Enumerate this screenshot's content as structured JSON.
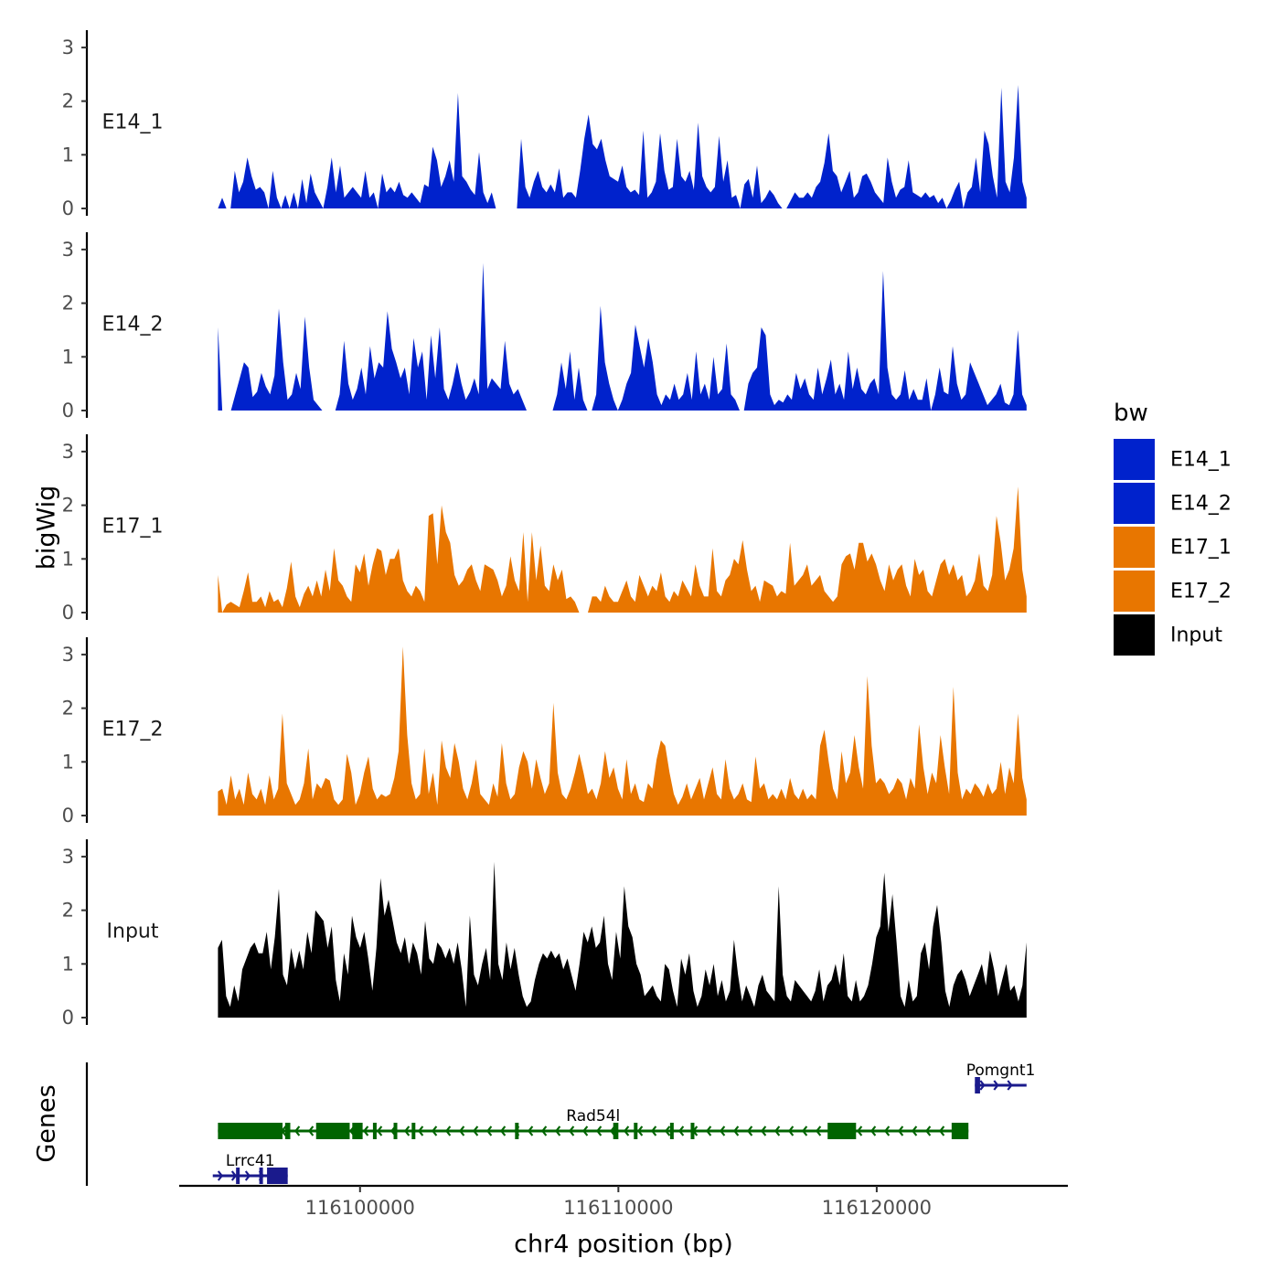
{
  "chart_data": {
    "type": "area",
    "ylabel": "bigWig",
    "genes_label": "Genes",
    "xlabel": "chr4 position (bp)",
    "x_range": [
      116094500,
      116125800
    ],
    "xlim": [
      116093000,
      116127400
    ],
    "x_ticks": [
      116100000,
      116110000,
      116120000
    ],
    "x_tick_labels": [
      "116100000",
      "116110000",
      "116120000"
    ],
    "ylim": [
      0,
      3.3
    ],
    "y_ticks": [
      0,
      1,
      2,
      3
    ],
    "y_tick_labels": [
      "0",
      "1",
      "2",
      "3"
    ],
    "legend": {
      "title": "bw",
      "entries": [
        {
          "label": "E14_1",
          "color": "#0022CC"
        },
        {
          "label": "E14_2",
          "color": "#0022CC"
        },
        {
          "label": "E17_1",
          "color": "#E87600"
        },
        {
          "label": "E17_2",
          "color": "#E87600"
        },
        {
          "label": "Input",
          "color": "#000000"
        }
      ]
    },
    "series": [
      {
        "name": "E14_1",
        "color": "#0022CC",
        "values": [
          0,
          0.2,
          0,
          0,
          0.7,
          0.3,
          0.5,
          0.95,
          0.6,
          0.35,
          0.4,
          0.3,
          0,
          0.7,
          0.2,
          0,
          0.25,
          0,
          0.3,
          0,
          0.55,
          0.1,
          0.65,
          0.3,
          0.15,
          0,
          0.4,
          0.95,
          0.3,
          0.8,
          0.2,
          0.3,
          0.4,
          0.3,
          0.2,
          0.7,
          0.2,
          0.3,
          0,
          0.65,
          0.3,
          0.4,
          0.3,
          0.5,
          0.25,
          0.2,
          0.3,
          0.2,
          0.1,
          0.45,
          0.4,
          1.15,
          0.9,
          0.4,
          0.6,
          0.9,
          0.5,
          2.15,
          0.6,
          0.5,
          0.35,
          0.25,
          1.05,
          0.3,
          0.1,
          0.3,
          0,
          0,
          0,
          0,
          0,
          0,
          1.3,
          0.4,
          0.2,
          0.5,
          0.7,
          0.4,
          0.3,
          0.45,
          0.3,
          0.75,
          0.2,
          0.3,
          0.3,
          0.2,
          0.7,
          1.3,
          1.75,
          1.2,
          1.1,
          1.3,
          0.9,
          0.6,
          0.55,
          0.5,
          0.8,
          0.4,
          0.3,
          0.35,
          0.25,
          1.45,
          0.2,
          0.3,
          0.5,
          1.4,
          0.7,
          0.35,
          0.4,
          1.3,
          0.6,
          0.5,
          0.7,
          0.35,
          1.6,
          0.6,
          0.4,
          0.3,
          0.4,
          1.35,
          0.5,
          0.9,
          0.2,
          0.25,
          0,
          0.45,
          0.55,
          0.2,
          0.8,
          0.1,
          0.2,
          0.35,
          0.25,
          0.1,
          0,
          0,
          0.15,
          0.3,
          0.2,
          0.2,
          0.3,
          0.2,
          0.4,
          0.5,
          0.85,
          1.4,
          0.7,
          0.6,
          0.3,
          0.5,
          0.7,
          0.2,
          0.3,
          0.6,
          0.65,
          0.5,
          0.3,
          0.2,
          0.1,
          0.95,
          0.5,
          0.2,
          0.35,
          0.4,
          0.9,
          0.3,
          0.25,
          0.2,
          0.3,
          0.2,
          0.25,
          0.1,
          0.2,
          0,
          0.15,
          0.35,
          0.5,
          0,
          0.3,
          0.4,
          0.95,
          0.3,
          1.45,
          1.2,
          0.6,
          0.2,
          2.25,
          0.5,
          0.3,
          0.95,
          2.3,
          0.5,
          0.2
        ]
      },
      {
        "name": "E14_2",
        "color": "#0022CC",
        "values": [
          1.55,
          0,
          0,
          0,
          0.3,
          0.6,
          0.9,
          0.8,
          0.25,
          0.35,
          0.7,
          0.45,
          0.3,
          0.65,
          1.9,
          0.9,
          0.2,
          0.3,
          0.7,
          0.4,
          1.75,
          0.8,
          0.2,
          0.1,
          0,
          0,
          0,
          0,
          0.3,
          1.3,
          0.5,
          0.2,
          0.4,
          0.8,
          0.3,
          1.2,
          0.6,
          0.9,
          0.8,
          1.85,
          1.15,
          0.9,
          0.6,
          0.8,
          0.3,
          1.35,
          0.8,
          1.1,
          0.2,
          1.4,
          0.6,
          1.55,
          0.4,
          0.2,
          0.5,
          0.9,
          0.5,
          0.2,
          0.35,
          0.6,
          0.3,
          2.75,
          0.4,
          0.6,
          0.5,
          0.4,
          1.3,
          0.5,
          0.3,
          0.4,
          0.2,
          0,
          0,
          0,
          0,
          0,
          0,
          0,
          0.3,
          0.9,
          0.4,
          1.1,
          0.2,
          0.8,
          0.2,
          0,
          0,
          0.3,
          1.95,
          0.9,
          0.5,
          0.2,
          0,
          0.2,
          0.5,
          0.7,
          1.6,
          1.2,
          0.8,
          1.35,
          0.9,
          0.3,
          0.1,
          0.3,
          0.2,
          0.5,
          0.2,
          0.3,
          0.7,
          0.2,
          1.1,
          0.3,
          0.5,
          0.2,
          1.0,
          0.3,
          0.4,
          1.25,
          0.3,
          0.2,
          0,
          0,
          0.5,
          0.7,
          0.8,
          1.55,
          1.4,
          0.3,
          0.1,
          0.2,
          0.15,
          0.3,
          0.2,
          0.7,
          0.4,
          0.6,
          0.3,
          0.2,
          0.8,
          0.3,
          0.6,
          0.95,
          0.3,
          0.5,
          0.2,
          1.1,
          0.4,
          0.8,
          0.4,
          0.3,
          0.5,
          0.6,
          0.3,
          2.6,
          0.8,
          0.3,
          0.2,
          0.3,
          0.75,
          0.2,
          0.4,
          0.2,
          0.2,
          0.6,
          0,
          0.3,
          0.8,
          0.35,
          0.3,
          1.2,
          0.5,
          0.2,
          0.3,
          0.9,
          0.7,
          0.5,
          0.3,
          0.1,
          0.2,
          0.3,
          0.5,
          0.15,
          0.1,
          0.3,
          1.5,
          0.3,
          0.1
        ]
      },
      {
        "name": "E17_1",
        "color": "#E87600",
        "values": [
          0.7,
          0,
          0.15,
          0.2,
          0.15,
          0.1,
          0.4,
          0.75,
          0.2,
          0.2,
          0.3,
          0.1,
          0.4,
          0.2,
          0.25,
          0.1,
          0.45,
          0.95,
          0.3,
          0.1,
          0.35,
          0.5,
          0.3,
          0.6,
          0.3,
          0.8,
          0.4,
          1.2,
          0.6,
          0.5,
          0.3,
          0.2,
          0.9,
          0.75,
          1.1,
          0.5,
          0.9,
          1.2,
          1.15,
          0.7,
          1.0,
          1.0,
          1.2,
          0.6,
          0.4,
          0.3,
          0.5,
          0.4,
          0.2,
          1.8,
          1.85,
          0.9,
          2.0,
          1.5,
          1.3,
          0.7,
          0.5,
          0.6,
          0.8,
          0.9,
          0.6,
          0.4,
          0.9,
          0.85,
          0.8,
          0.6,
          0.3,
          0.5,
          1.05,
          0.6,
          0.4,
          1.5,
          0.2,
          1.5,
          0.6,
          1.25,
          0.5,
          0.4,
          0.9,
          0.6,
          0.8,
          0.25,
          0.3,
          0.2,
          0,
          0,
          0,
          0.3,
          0.3,
          0.2,
          0.5,
          0.3,
          0.2,
          0.2,
          0.4,
          0.6,
          0.3,
          0.2,
          0.7,
          0.5,
          0.3,
          0.5,
          0.4,
          0.75,
          0.3,
          0.2,
          0.4,
          0.3,
          0.6,
          0.45,
          0.3,
          0.9,
          0.5,
          0.3,
          0.3,
          1.2,
          0.4,
          0.3,
          0.6,
          0.7,
          1.0,
          0.9,
          1.35,
          0.8,
          0.4,
          0.5,
          0.2,
          0.6,
          0.55,
          0.5,
          0.3,
          0.4,
          0.35,
          1.3,
          0.5,
          0.6,
          0.7,
          0.9,
          0.5,
          0.6,
          0.7,
          0.4,
          0.3,
          0.2,
          0.3,
          0.9,
          1.05,
          1.1,
          0.8,
          1.3,
          1.3,
          0.95,
          1.1,
          0.9,
          0.6,
          0.4,
          0.9,
          0.6,
          0.8,
          0.9,
          0.5,
          0.3,
          1.0,
          0.7,
          0.8,
          0.4,
          0.3,
          0.6,
          0.9,
          1.0,
          0.7,
          0.9,
          0.6,
          0.7,
          0.3,
          0.4,
          0.6,
          1.1,
          0.5,
          0.4,
          0.7,
          1.8,
          1.3,
          0.6,
          0.8,
          1.2,
          2.35,
          0.8,
          0.3
        ]
      },
      {
        "name": "E17_2",
        "color": "#E87600",
        "values": [
          0.45,
          0.5,
          0.2,
          0.75,
          0.3,
          0.5,
          0.2,
          0.8,
          0.4,
          0.3,
          0.5,
          0.2,
          0.75,
          0.3,
          0.5,
          1.9,
          0.6,
          0.4,
          0.2,
          0.3,
          0.6,
          1.25,
          0.3,
          0.6,
          0.5,
          0.7,
          0.65,
          0.3,
          0.2,
          0.3,
          1.15,
          0.8,
          0.2,
          0.4,
          0.8,
          1.1,
          0.5,
          0.3,
          0.4,
          0.35,
          0.4,
          0.7,
          1.2,
          3.15,
          1.5,
          0.6,
          0.3,
          0.4,
          1.25,
          0.4,
          0.8,
          0.2,
          1.4,
          0.9,
          0.7,
          1.35,
          1.0,
          0.5,
          0.3,
          0.6,
          1.05,
          0.4,
          0.3,
          0.2,
          0.6,
          0.35,
          1.35,
          0.6,
          0.3,
          0.4,
          0.9,
          1.2,
          1.0,
          0.5,
          1.05,
          0.7,
          0.4,
          0.6,
          2.1,
          0.8,
          0.4,
          0.3,
          0.5,
          0.8,
          1.15,
          0.8,
          0.4,
          0.5,
          0.3,
          0.6,
          1.2,
          0.7,
          0.9,
          0.5,
          0.3,
          1.05,
          0.4,
          0.6,
          0.3,
          0.25,
          0.6,
          0.5,
          1.05,
          1.4,
          1.3,
          0.8,
          0.4,
          0.2,
          0.35,
          0.6,
          0.3,
          0.5,
          0.7,
          0.3,
          0.6,
          0.9,
          0.4,
          0.3,
          1.05,
          0.5,
          0.3,
          0.4,
          0.6,
          0.3,
          0.25,
          1.1,
          0.5,
          0.6,
          0.3,
          0.4,
          0.3,
          0.5,
          0.3,
          0.7,
          0.4,
          0.3,
          0.5,
          0.3,
          0.4,
          0.3,
          1.3,
          1.6,
          1.0,
          0.5,
          0.3,
          1.2,
          0.6,
          0.8,
          1.5,
          0.9,
          0.5,
          2.6,
          1.3,
          0.6,
          0.7,
          0.6,
          0.4,
          0.5,
          0.7,
          0.6,
          0.3,
          0.7,
          0.5,
          1.7,
          0.9,
          0.4,
          0.8,
          0.6,
          1.5,
          0.9,
          0.4,
          2.4,
          0.8,
          0.3,
          0.5,
          0.4,
          0.6,
          0.5,
          0.35,
          0.6,
          0.4,
          0.5,
          1.0,
          0.4,
          0.9,
          0.6,
          1.9,
          0.7,
          0.3
        ]
      },
      {
        "name": "Input",
        "color": "#000000",
        "values": [
          1.3,
          1.45,
          0.4,
          0.2,
          0.6,
          0.3,
          0.9,
          1.1,
          1.3,
          1.4,
          1.2,
          1.2,
          1.6,
          0.9,
          1.5,
          2.4,
          0.8,
          0.6,
          1.3,
          0.9,
          1.25,
          0.9,
          1.6,
          1.2,
          2.0,
          1.9,
          1.8,
          1.3,
          1.7,
          0.7,
          0.3,
          1.2,
          0.8,
          1.9,
          1.5,
          1.3,
          1.6,
          1.1,
          0.5,
          1.3,
          2.6,
          1.9,
          2.2,
          1.8,
          1.4,
          1.2,
          1.5,
          1.0,
          1.4,
          1.2,
          0.8,
          1.8,
          1.1,
          1.0,
          1.4,
          1.3,
          1.1,
          1.3,
          1.0,
          1.4,
          0.9,
          0.2,
          1.9,
          0.8,
          0.6,
          1.0,
          1.3,
          0.7,
          2.9,
          1.0,
          0.7,
          1.4,
          0.9,
          1.3,
          0.8,
          0.4,
          0.2,
          0.3,
          0.7,
          1.0,
          1.2,
          1.1,
          1.25,
          1.1,
          1.2,
          0.9,
          1.1,
          0.8,
          0.5,
          1.0,
          1.6,
          1.4,
          1.7,
          1.3,
          1.4,
          1.9,
          1.0,
          0.7,
          1.6,
          1.1,
          2.45,
          1.7,
          1.5,
          1.0,
          0.8,
          0.4,
          0.5,
          0.6,
          0.4,
          0.3,
          1.0,
          0.9,
          0.5,
          0.2,
          1.1,
          0.8,
          1.2,
          0.5,
          0.2,
          0.4,
          0.9,
          0.6,
          1.0,
          0.4,
          0.7,
          0.3,
          0.5,
          1.45,
          0.8,
          0.3,
          0.6,
          0.4,
          0.2,
          0.6,
          0.8,
          0.5,
          0.4,
          0.3,
          2.45,
          0.8,
          0.4,
          0.3,
          0.7,
          0.6,
          0.5,
          0.4,
          0.3,
          0.5,
          0.9,
          0.3,
          0.6,
          0.7,
          1.0,
          0.6,
          1.2,
          0.4,
          0.3,
          0.7,
          0.3,
          0.4,
          0.6,
          1.0,
          1.5,
          1.7,
          2.7,
          1.6,
          2.3,
          1.4,
          0.4,
          0.2,
          0.7,
          0.3,
          0.4,
          1.2,
          1.4,
          0.9,
          1.7,
          2.1,
          1.4,
          0.5,
          0.2,
          0.6,
          0.8,
          0.9,
          0.7,
          0.4,
          0.6,
          0.8,
          1.0,
          0.6,
          1.25,
          0.9,
          0.4,
          0.7,
          1.0,
          0.5,
          0.6,
          0.3,
          0.6,
          1.4
        ]
      }
    ],
    "genes": [
      {
        "name": "Pomgnt1",
        "strand": "+",
        "color": "#1A1A8C",
        "start": 116123800,
        "end": 116125800,
        "row": 1,
        "blocks": [
          [
            116123800,
            116124000
          ]
        ]
      },
      {
        "name": "Rad54l",
        "strand": "-",
        "color": "#006400",
        "start": 116094500,
        "end": 116123550,
        "row": 2,
        "blocks": [
          [
            116094500,
            116097000
          ],
          [
            116097100,
            116097300
          ],
          [
            116098300,
            116099600
          ],
          [
            116099700,
            116100100
          ],
          [
            116100500,
            116100600
          ],
          [
            116101300,
            116101400
          ],
          [
            116102000,
            116102100
          ],
          [
            116106000,
            116106100
          ],
          [
            116109800,
            116110000
          ],
          [
            116110600,
            116110700
          ],
          [
            116112000,
            116112100
          ],
          [
            116112800,
            116112900
          ],
          [
            116118100,
            116119200
          ],
          [
            116122900,
            116123550
          ]
        ]
      },
      {
        "name": "Lrrc41",
        "strand": "+",
        "color": "#1A1A8C",
        "start": 116094300,
        "end": 116097200,
        "row": 3,
        "blocks": [
          [
            116095200,
            116095300
          ],
          [
            116096100,
            116096200
          ],
          [
            116096400,
            116097200
          ]
        ]
      }
    ]
  }
}
